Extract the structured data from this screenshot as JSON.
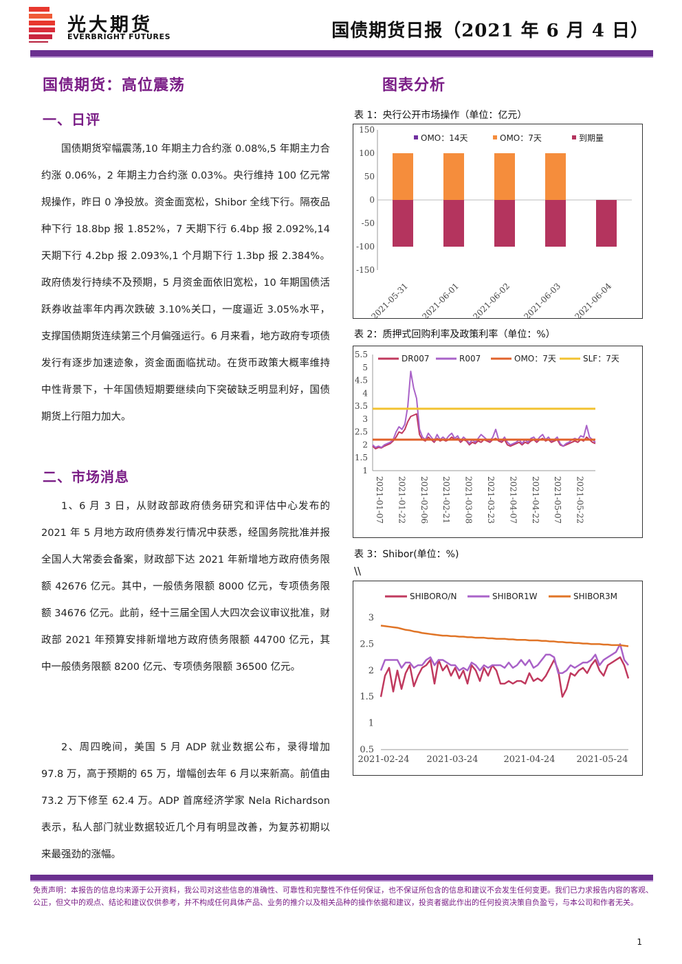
{
  "header": {
    "brand_cn": "光大期货",
    "brand_en": "EVERBRIGHT FUTURES",
    "report_title": "国债期货日报（2021 年 6 月 4 日）"
  },
  "main_title": "国债期货：高位震荡",
  "section1": {
    "title": "一、日评",
    "paragraph": "国债期货窄幅震荡,10 年期主力合约涨 0.08%,5 年期主力合约涨 0.06%，2 年期主力合约涨 0.03%。央行维持 100 亿元常规操作，昨日 0 净投放。资金面宽松，Shibor 全线下行。隔夜品种下行 18.8bp 报 1.852%，7 天期下行 6.4bp 报 2.092%,14 天期下行 4.2bp 报 2.093%,1 个月期下行 1.3bp 报 2.384%。政府债发行持续不及预期，5 月资金面依旧宽松，10 年期国债活跃券收益率年内再次跌破 3.10%关口，一度逼近 3.05%水平，支撑国债期货连续第三个月偏强运行。6 月来看，地方政府专项债发行有逐步加速迹象，资金面面临扰动。在货币政策大概率维持中性背景下，十年国债短期要继续向下突破缺乏明显利好，国债期货上行阻力加大。"
  },
  "section2": {
    "title": "二、市场消息",
    "paragraph1": "1、6 月 3 日，从财政部政府债务研究和评估中心发布的 2021 年 5 月地方政府债券发行情况中获悉，经国务院批准并报全国人大常委会备案，财政部下达 2021 年新增地方政府债务限额 42676 亿元。其中，一般债务限额 8000 亿元，专项债务限额 34676 亿元。此前，经十三届全国人大四次会议审议批准，财政部 2021 年预算安排新增地方政府债务限额 44700 亿元，其中一般债务限额 8200 亿元、专项债务限额 36500 亿元。",
    "paragraph2": "2、周四晚间，美国 5 月 ADP 就业数据公布，录得增加 97.8 万，高于预期的 65 万，增幅创去年 6 月以来新高。前值由 73.2 万下修至 62.4 万。ADP 首席经济学家 Nela Richardson 表示，私人部门就业数据较近几个月有明显改善，为复苏初期以来最强劲的涨幅。"
  },
  "right_title": "图表分析",
  "stray_mark": "\\\\",
  "disclaimer": "免责声明：本报告的信息均来源于公开资料，我公司对这些信息的准确性、可靠性和完整性不作任何保证，也不保证所包含的信息和建议不会发生任何变更。我们已力求报告内容的客观、公正，但文中的观点、结论和建议仅供参考，并不构成任何具体产品、业务的推介以及相关品种的操作依据和建议，投资者据此作出的任何投资决策自负盈亏，与本公司和作者无关。",
  "page_number": "1",
  "colors": {
    "brand_purple": "#6a2f8f",
    "heading_purple": "#7a1d86",
    "logo_red": "#e8382e",
    "omo14": "#7030a0",
    "omo7": "#f58d3c",
    "maturity": "#b4345e",
    "dr007": "#c0395e",
    "r007": "#a962c8",
    "omo_rate": "#e0622b",
    "slf": "#f2c230",
    "shibor_on": "#c0395e",
    "shibor_1w": "#a962c8",
    "shibor_3m": "#e07426"
  },
  "chart_data": [
    {
      "id": "chart1",
      "caption": "表 1：央行公开市场操作（单位：亿元）",
      "type": "bar",
      "categories": [
        "2021-05-31",
        "2021-06-01",
        "2021-06-02",
        "2021-06-03",
        "2021-06-04"
      ],
      "series": [
        {
          "name": "OMO：14天",
          "values": [
            0,
            0,
            0,
            0,
            0
          ]
        },
        {
          "name": "OMO：7天",
          "values": [
            100,
            100,
            100,
            100,
            0
          ]
        },
        {
          "name": "到期量",
          "values": [
            -100,
            -100,
            -100,
            -100,
            -100
          ]
        }
      ],
      "ylim": [
        -150,
        150
      ],
      "yticks": [
        "150",
        "100",
        "50",
        "0",
        "-50",
        "-100",
        "-150"
      ],
      "legend": "top"
    },
    {
      "id": "chart2",
      "caption": "表 2：质押式回购利率及政策利率（单位：%）",
      "type": "line",
      "x_start": "2021-01-04",
      "x_end": "2021-06-03",
      "xticks": [
        "2021-01-07",
        "2021-01-22",
        "2021-02-06",
        "2021-02-21",
        "2021-03-08",
        "2021-03-23",
        "2021-04-07",
        "2021-04-22",
        "2021-05-07",
        "2021-05-22"
      ],
      "ylim": [
        1,
        5.5
      ],
      "yticks": [
        "1",
        "1.5",
        "2",
        "2.5",
        "3",
        "3.5",
        "4",
        "4.5",
        "5",
        "5.5"
      ],
      "series": [
        {
          "name": "DR007",
          "values": [
            1.95,
            1.85,
            1.9,
            1.88,
            1.95,
            2.0,
            2.05,
            2.15,
            2.3,
            2.5,
            2.45,
            2.6,
            2.9,
            3.1,
            3.15,
            3.2,
            2.4,
            2.2,
            2.15,
            2.3,
            2.2,
            2.1,
            2.25,
            2.15,
            2.2,
            2.15,
            2.2,
            2.3,
            2.2,
            2.25,
            2.1,
            2.2,
            2.15,
            2.0,
            2.1,
            2.05,
            2.15,
            2.1,
            2.2,
            2.15,
            2.1,
            2.2,
            2.25,
            2.15,
            2.1,
            2.2,
            2.0,
            1.95,
            2.0,
            2.05,
            2.1,
            2.0,
            2.1,
            2.05,
            2.15,
            2.2,
            2.1,
            2.2,
            2.25,
            2.15,
            2.2,
            2.1,
            2.15,
            2.2,
            2.0,
            1.95,
            2.0,
            2.05,
            2.1,
            2.15,
            2.1,
            2.2,
            2.15,
            2.3,
            2.2,
            2.1,
            2.05
          ]
        },
        {
          "name": "R007",
          "values": [
            2.0,
            1.9,
            1.95,
            1.9,
            2.0,
            2.05,
            2.1,
            2.2,
            2.5,
            2.7,
            2.6,
            2.8,
            3.5,
            4.85,
            4.2,
            3.8,
            2.6,
            2.3,
            2.2,
            2.45,
            2.3,
            2.15,
            2.4,
            2.2,
            2.3,
            2.2,
            2.35,
            2.45,
            2.25,
            2.35,
            2.15,
            2.3,
            2.2,
            2.05,
            2.2,
            2.1,
            2.25,
            2.4,
            2.3,
            2.2,
            2.15,
            2.3,
            2.6,
            2.2,
            2.15,
            2.3,
            2.1,
            2.0,
            2.05,
            2.1,
            2.2,
            2.05,
            2.2,
            2.1,
            2.25,
            2.3,
            2.15,
            2.3,
            2.4,
            2.2,
            2.3,
            2.15,
            2.2,
            2.3,
            2.05,
            1.95,
            2.05,
            2.1,
            2.2,
            2.25,
            2.2,
            2.35,
            2.3,
            2.75,
            2.3,
            2.2,
            2.1
          ]
        },
        {
          "name": "OMO：7天",
          "values": [
            2.2,
            2.2
          ]
        },
        {
          "name": "SLF：7天",
          "values": [
            3.4,
            3.4
          ]
        }
      ],
      "legend": "top"
    },
    {
      "id": "chart3",
      "caption": "表 3：Shibor(单位：%)",
      "type": "line",
      "xticks": [
        "2021-02-24",
        "2021-03-24",
        "2021-04-24",
        "2021-05-24"
      ],
      "ylim": [
        0.5,
        3
      ],
      "yticks": [
        "0.5",
        "1",
        "1.5",
        "2",
        "2.5",
        "3"
      ],
      "series": [
        {
          "name": "SHIBORO/N",
          "values": [
            1.5,
            1.9,
            2.05,
            1.6,
            2.0,
            1.65,
            1.95,
            2.1,
            1.7,
            1.9,
            2.05,
            2.1,
            2.2,
            1.75,
            2.2,
            2.0,
            2.1,
            1.9,
            2.05,
            1.85,
            2.0,
            1.75,
            2.1,
            2.0,
            1.8,
            2.05,
            1.9,
            2.1,
            2.0,
            1.75,
            1.75,
            1.8,
            1.75,
            1.8,
            1.8,
            1.75,
            1.95,
            1.8,
            1.85,
            1.8,
            1.9,
            2.05,
            2.2,
            2.0,
            1.5,
            1.65,
            1.95,
            1.9,
            2.0,
            2.05,
            1.95,
            2.1,
            2.2,
            2.0,
            1.9,
            2.1,
            2.15,
            2.2,
            2.25,
            2.1,
            1.85
          ]
        },
        {
          "name": "SHIBOR1W",
          "values": [
            2.0,
            2.2,
            2.2,
            2.2,
            2.2,
            2.05,
            2.15,
            2.15,
            2.05,
            2.1,
            2.1,
            2.2,
            2.25,
            2.1,
            2.2,
            2.2,
            2.15,
            2.1,
            2.1,
            2.0,
            2.05,
            2.0,
            2.15,
            2.1,
            2.0,
            2.1,
            2.05,
            2.1,
            2.1,
            2.1,
            2.05,
            2.15,
            2.05,
            2.1,
            2.2,
            2.1,
            2.2,
            2.05,
            2.1,
            2.2,
            2.3,
            2.3,
            2.25,
            1.95,
            1.95,
            2.0,
            2.1,
            2.05,
            2.1,
            2.15,
            2.15,
            2.2,
            2.3,
            2.1,
            2.2,
            2.25,
            2.3,
            2.35,
            2.5,
            2.2,
            2.1
          ]
        },
        {
          "name": "SHIBOR3M",
          "values": [
            2.85,
            2.84,
            2.83,
            2.82,
            2.81,
            2.79,
            2.77,
            2.76,
            2.74,
            2.73,
            2.71,
            2.7,
            2.69,
            2.68,
            2.67,
            2.66,
            2.66,
            2.65,
            2.65,
            2.64,
            2.64,
            2.63,
            2.63,
            2.62,
            2.62,
            2.62,
            2.61,
            2.61,
            2.6,
            2.6,
            2.6,
            2.59,
            2.59,
            2.58,
            2.58,
            2.58,
            2.57,
            2.57,
            2.57,
            2.56,
            2.56,
            2.55,
            2.55,
            2.54,
            2.54,
            2.53,
            2.53,
            2.52,
            2.52,
            2.51,
            2.51,
            2.5,
            2.5,
            2.5,
            2.49,
            2.49,
            2.48,
            2.48,
            2.48,
            2.47,
            2.46
          ]
        }
      ],
      "legend": "top"
    }
  ]
}
